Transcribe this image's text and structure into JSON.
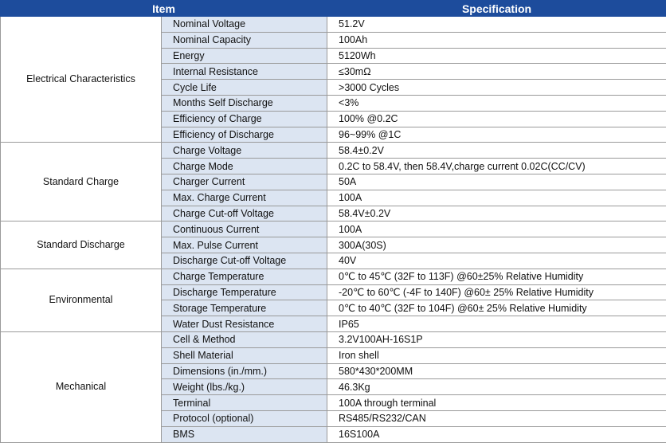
{
  "header": {
    "item": "Item",
    "specification": "Specification"
  },
  "groups": [
    {
      "name": "Electrical Characteristics",
      "rows": [
        [
          "Nominal Voltage",
          "51.2V"
        ],
        [
          "Nominal Capacity",
          "100Ah"
        ],
        [
          "Energy",
          "5120Wh"
        ],
        [
          "Internal Resistance",
          "≤30mΩ"
        ],
        [
          "Cycle Life",
          ">3000 Cycles"
        ],
        [
          "Months Self Discharge",
          "<3%"
        ],
        [
          "Efficiency of Charge",
          "100% @0.2C"
        ],
        [
          "Efficiency of Discharge",
          "96~99% @1C"
        ]
      ]
    },
    {
      "name": "Standard Charge",
      "rows": [
        [
          "Charge Voltage",
          "58.4±0.2V"
        ],
        [
          "Charge Mode",
          "0.2C to 58.4V, then 58.4V,charge current 0.02C(CC/CV)"
        ],
        [
          "Charger Current",
          "50A"
        ],
        [
          "Max. Charge Current",
          "100A"
        ],
        [
          "Charge Cut-off Voltage",
          "58.4V±0.2V"
        ]
      ]
    },
    {
      "name": "Standard Discharge",
      "rows": [
        [
          "Continuous Current",
          "100A"
        ],
        [
          "Max. Pulse Current",
          "300A(30S)"
        ],
        [
          "Discharge Cut-off Voltage",
          "40V"
        ]
      ]
    },
    {
      "name": "Environmental",
      "rows": [
        [
          "Charge Temperature",
          "0℃ to 45℃ (32F to 113F) @60±25% Relative Humidity"
        ],
        [
          "Discharge Temperature",
          "-20℃ to 60℃ (-4F to 140F) @60± 25% Relative Humidity"
        ],
        [
          "Storage Temperature",
          "0℃ to 40℃ (32F to 104F) @60± 25% Relative Humidity"
        ],
        [
          "Water Dust Resistance",
          "IP65"
        ]
      ]
    },
    {
      "name": "Mechanical",
      "rows": [
        [
          "Cell & Method",
          "3.2V100AH-16S1P"
        ],
        [
          "Shell Material",
          "Iron shell"
        ],
        [
          "Dimensions (in./mm.)",
          "580*430*200MM"
        ],
        [
          "Weight (lbs./kg.)",
          "46.3Kg"
        ],
        [
          "Terminal",
          "100A through terminal"
        ],
        [
          "Protocol (optional)",
          "RS485/RS232/CAN"
        ],
        [
          "BMS",
          "16S100A"
        ]
      ]
    }
  ]
}
